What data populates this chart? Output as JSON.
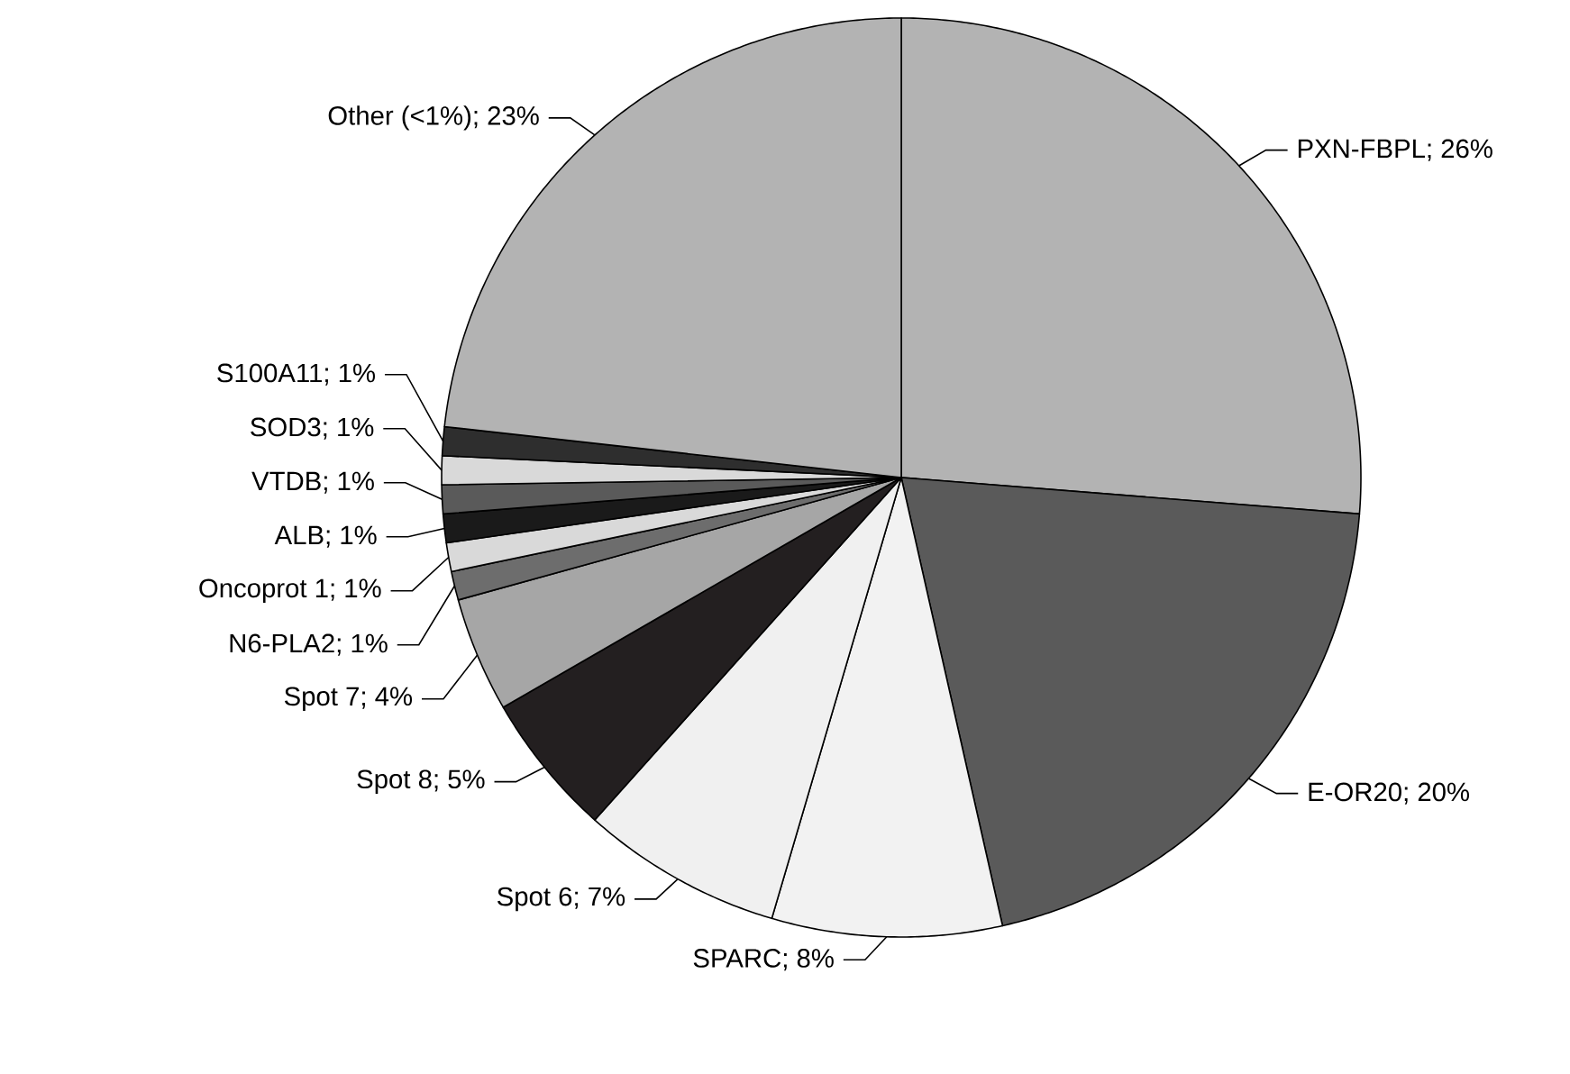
{
  "chart_data": {
    "type": "pie",
    "categories": [
      "PXN-FBPL",
      "E-OR20",
      "SPARC",
      "Spot 6",
      "Spot 8",
      "Spot 7",
      "N6-PLA2",
      "Oncoprot 1",
      "ALB",
      "VTDB",
      "SOD3",
      "S100A11",
      "Other (<1%)"
    ],
    "values": [
      26,
      20,
      8,
      7,
      5,
      4,
      1,
      1,
      1,
      1,
      1,
      1,
      23
    ],
    "value_labels": [
      "; 26%",
      "; 20%",
      "; 8%",
      "; 7%",
      "; 5%",
      "; 4%",
      "; 1%",
      "; 1%",
      "; 1%",
      "; 1%",
      "; 1%",
      "; 1%",
      "; 23%"
    ],
    "colors": [
      "#b3b3b3",
      "#5a5a5a",
      "#f2f2f2",
      "#f0f0f0",
      "#231f20",
      "#a6a6a6",
      "#6d6d6d",
      "#d9d9d9",
      "#1a1a1a",
      "#5a5a5a",
      "#d9d9d9",
      "#2e2e2e",
      "#b3b3b3"
    ]
  }
}
